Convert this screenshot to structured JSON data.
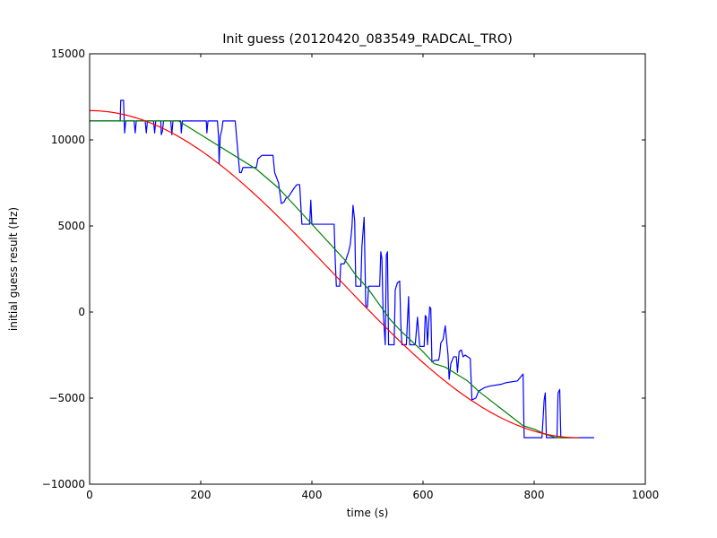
{
  "chart_data": {
    "type": "line",
    "title": "Init guess (20120420_083549_RADCAL_TRO)",
    "xlabel": "time (s)",
    "ylabel": "initial guess result (Hz)",
    "xlim": [
      0,
      1000
    ],
    "ylim": [
      -10000,
      15000
    ],
    "xticks": [
      0,
      200,
      400,
      600,
      800,
      1000
    ],
    "yticks": [
      -10000,
      -5000,
      0,
      5000,
      10000,
      15000
    ],
    "xtick_labels": [
      "0",
      "200",
      "400",
      "600",
      "800",
      "1000"
    ],
    "ytick_labels": [
      "−10000",
      "−5000",
      "0",
      "5000",
      "10000",
      "15000"
    ],
    "grid": false,
    "series": [
      {
        "color": "#0000ff",
        "points": [
          [
            0,
            11100
          ],
          [
            55,
            11100
          ],
          [
            56,
            12300
          ],
          [
            61,
            12300
          ],
          [
            63,
            10400
          ],
          [
            65,
            11100
          ],
          [
            80,
            11100
          ],
          [
            82,
            10400
          ],
          [
            84,
            11100
          ],
          [
            100,
            11100
          ],
          [
            102,
            10400
          ],
          [
            104,
            11100
          ],
          [
            115,
            11100
          ],
          [
            117,
            10400
          ],
          [
            119,
            11100
          ],
          [
            128,
            11100
          ],
          [
            129,
            10300
          ],
          [
            131,
            10500
          ],
          [
            133,
            11100
          ],
          [
            146,
            11100
          ],
          [
            148,
            10300
          ],
          [
            150,
            11100
          ],
          [
            164,
            11100
          ],
          [
            165,
            10400
          ],
          [
            167,
            11100
          ],
          [
            210,
            11100
          ],
          [
            211,
            10400
          ],
          [
            213,
            11100
          ],
          [
            230,
            11100
          ],
          [
            232,
            10200
          ],
          [
            233,
            8600
          ],
          [
            235,
            10200
          ],
          [
            238,
            10600
          ],
          [
            240,
            11100
          ],
          [
            262,
            11100
          ],
          [
            270,
            8100
          ],
          [
            273,
            8100
          ],
          [
            276,
            8400
          ],
          [
            300,
            8400
          ],
          [
            303,
            8900
          ],
          [
            310,
            9100
          ],
          [
            330,
            9100
          ],
          [
            333,
            8100
          ],
          [
            340,
            7500
          ],
          [
            345,
            6300
          ],
          [
            350,
            6400
          ],
          [
            353,
            6600
          ],
          [
            358,
            6700
          ],
          [
            368,
            7200
          ],
          [
            373,
            7400
          ],
          [
            378,
            7400
          ],
          [
            382,
            5100
          ],
          [
            388,
            5100
          ],
          [
            396,
            5100
          ],
          [
            398,
            6500
          ],
          [
            400,
            5100
          ],
          [
            415,
            5100
          ],
          [
            440,
            5100
          ],
          [
            442,
            3000
          ],
          [
            444,
            1500
          ],
          [
            450,
            1500
          ],
          [
            452,
            2800
          ],
          [
            458,
            2800
          ],
          [
            462,
            3100
          ],
          [
            466,
            3500
          ],
          [
            469,
            3900
          ],
          [
            472,
            4900
          ],
          [
            474,
            6200
          ],
          [
            477,
            5300
          ],
          [
            479,
            1500
          ],
          [
            484,
            1500
          ],
          [
            488,
            1500
          ],
          [
            490,
            3800
          ],
          [
            494,
            5500
          ],
          [
            497,
            300
          ],
          [
            500,
            300
          ],
          [
            502,
            1500
          ],
          [
            508,
            1500
          ],
          [
            514,
            1500
          ],
          [
            522,
            1500
          ],
          [
            524,
            3500
          ],
          [
            526,
            3100
          ],
          [
            528,
            200
          ],
          [
            532,
            -1900
          ],
          [
            534,
            3300
          ],
          [
            536,
            3500
          ],
          [
            538,
            -1900
          ],
          [
            542,
            -1900
          ],
          [
            548,
            -1900
          ],
          [
            550,
            1300
          ],
          [
            554,
            1700
          ],
          [
            558,
            1800
          ],
          [
            560,
            -700
          ],
          [
            562,
            -1900
          ],
          [
            565,
            -1900
          ],
          [
            570,
            -1900
          ],
          [
            574,
            900
          ],
          [
            576,
            -1900
          ],
          [
            580,
            -1900
          ],
          [
            586,
            -1900
          ],
          [
            590,
            -300
          ],
          [
            594,
            -2000
          ],
          [
            602,
            -2000
          ],
          [
            604,
            -200
          ],
          [
            606,
            -300
          ],
          [
            608,
            -1900
          ],
          [
            612,
            300
          ],
          [
            614,
            200
          ],
          [
            616,
            -2900
          ],
          [
            622,
            -2800
          ],
          [
            628,
            -2800
          ],
          [
            630,
            -2500
          ],
          [
            632,
            -1800
          ],
          [
            636,
            -1600
          ],
          [
            640,
            -800
          ],
          [
            642,
            -1500
          ],
          [
            645,
            -2500
          ],
          [
            647,
            -3900
          ],
          [
            650,
            -3000
          ],
          [
            655,
            -2600
          ],
          [
            660,
            -2600
          ],
          [
            662,
            -3500
          ],
          [
            665,
            -2300
          ],
          [
            669,
            -2200
          ],
          [
            672,
            -2600
          ],
          [
            676,
            -2500
          ],
          [
            685,
            -2700
          ],
          [
            688,
            -5100
          ],
          [
            695,
            -5000
          ],
          [
            700,
            -4600
          ],
          [
            710,
            -4400
          ],
          [
            720,
            -4300
          ],
          [
            740,
            -4200
          ],
          [
            750,
            -4100
          ],
          [
            770,
            -4000
          ],
          [
            780,
            -3600
          ],
          [
            782,
            -7300
          ],
          [
            790,
            -7300
          ],
          [
            800,
            -7300
          ],
          [
            814,
            -7300
          ],
          [
            818,
            -5100
          ],
          [
            820,
            -4700
          ],
          [
            822,
            -7300
          ],
          [
            832,
            -7300
          ],
          [
            841,
            -7300
          ],
          [
            843,
            -4700
          ],
          [
            846,
            -4500
          ],
          [
            848,
            -7300
          ],
          [
            860,
            -7300
          ],
          [
            880,
            -7300
          ],
          [
            908,
            -7300
          ]
        ]
      },
      {
        "color": "#008000",
        "points": [
          [
            0,
            11100
          ],
          [
            50,
            11100
          ],
          [
            100,
            11100
          ],
          [
            160,
            11100
          ],
          [
            200,
            10300
          ],
          [
            250,
            9300
          ],
          [
            300,
            8300
          ],
          [
            340,
            7200
          ],
          [
            380,
            5800
          ],
          [
            420,
            4400
          ],
          [
            460,
            3000
          ],
          [
            480,
            2100
          ],
          [
            500,
            1400
          ],
          [
            520,
            500
          ],
          [
            540,
            -400
          ],
          [
            560,
            -1100
          ],
          [
            580,
            -1700
          ],
          [
            600,
            -2300
          ],
          [
            620,
            -3000
          ],
          [
            640,
            -3200
          ],
          [
            660,
            -3600
          ],
          [
            680,
            -4000
          ],
          [
            700,
            -4600
          ],
          [
            720,
            -5100
          ],
          [
            740,
            -5600
          ],
          [
            760,
            -6100
          ],
          [
            780,
            -6600
          ],
          [
            800,
            -6800
          ],
          [
            820,
            -7100
          ],
          [
            840,
            -7300
          ],
          [
            880,
            -7300
          ]
        ]
      },
      {
        "color": "#ff0000",
        "curve": {
          "kind": "cosine",
          "t_end": 880,
          "mean": 2200,
          "amplitude": 9500
        }
      }
    ]
  }
}
